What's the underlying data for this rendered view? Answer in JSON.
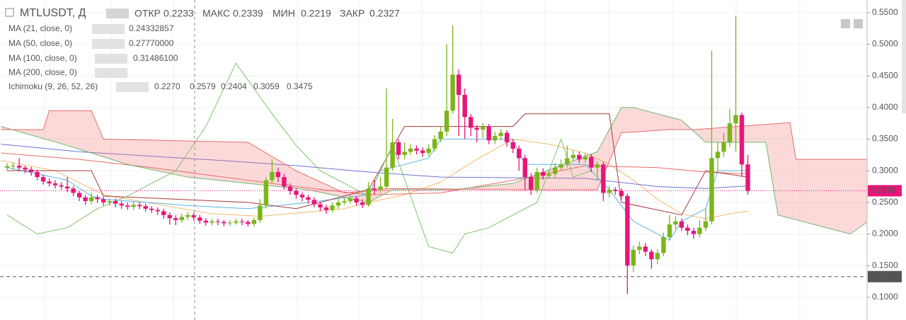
{
  "chart_data": {
    "type": "candlestick",
    "title": "MTLUSDT, Д",
    "ohlc": [
      {
        "name": "ОТКР",
        "value_label": "0.2233"
      },
      {
        "name": "МАКС",
        "value_label": "0.2339"
      },
      {
        "name": "МИН",
        "value_label": "0.2219"
      },
      {
        "name": "ЗАКР",
        "value_label": "0.2327"
      }
    ],
    "up_color": "#7cb518",
    "down_color": "#e8157a",
    "xlim": [
      -1.18,
      142.8
    ],
    "ylim": [
      0.064,
      0.57
    ],
    "yticks": [
      {
        "value": 0.1,
        "label": "0.1000"
      },
      {
        "value": 0.15,
        "label": "0.1500"
      },
      {
        "value": 0.2,
        "label": "0.2000"
      },
      {
        "value": 0.25,
        "label": "0.2500"
      },
      {
        "value": 0.3,
        "label": "0.3000"
      },
      {
        "value": 0.35,
        "label": "0.3500"
      },
      {
        "value": 0.4,
        "label": "0.4000"
      },
      {
        "value": 0.45,
        "label": "0.4500"
      },
      {
        "value": 0.5,
        "label": "0.5000"
      },
      {
        "value": 0.55,
        "label": "0.5500"
      }
    ],
    "grid": true,
    "candles": {
      "open": [
        0.305,
        0.307,
        0.308,
        0.305,
        0.302,
        0.298,
        0.29,
        0.283,
        0.28,
        0.277,
        0.275,
        0.272,
        0.265,
        0.258,
        0.252,
        0.258,
        0.255,
        0.25,
        0.252,
        0.248,
        0.245,
        0.243,
        0.246,
        0.244,
        0.24,
        0.238,
        0.236,
        0.23,
        0.225,
        0.222,
        0.227,
        0.23,
        0.226,
        0.221,
        0.218,
        0.22,
        0.219,
        0.217,
        0.218,
        0.22,
        0.219,
        0.216,
        0.222,
        0.245,
        0.285,
        0.298,
        0.29,
        0.275,
        0.268,
        0.262,
        0.258,
        0.254,
        0.247,
        0.242,
        0.238,
        0.245,
        0.25,
        0.252,
        0.256,
        0.25,
        0.246,
        0.272,
        0.27,
        0.275,
        0.305,
        0.345,
        0.325,
        0.33,
        0.335,
        0.332,
        0.328,
        0.335,
        0.35,
        0.362,
        0.395,
        0.452,
        0.42,
        0.385,
        0.368,
        0.365,
        0.37,
        0.348,
        0.355,
        0.36,
        0.345,
        0.335,
        0.32,
        0.29,
        0.27,
        0.298,
        0.292,
        0.295,
        0.305,
        0.31,
        0.32,
        0.325,
        0.318,
        0.322,
        0.305,
        0.31,
        0.265,
        0.27,
        0.268,
        0.26,
        0.15,
        0.175,
        0.18,
        0.172,
        0.16,
        0.17,
        0.195,
        0.215,
        0.22,
        0.21,
        0.205,
        0.2,
        0.21,
        0.22,
        0.32,
        0.33,
        0.345,
        0.375,
        0.388,
        0.31
      ],
      "high": [
        0.312,
        0.313,
        0.32,
        0.308,
        0.306,
        0.302,
        0.294,
        0.288,
        0.285,
        0.282,
        0.29,
        0.276,
        0.268,
        0.262,
        0.265,
        0.262,
        0.259,
        0.256,
        0.256,
        0.252,
        0.25,
        0.251,
        0.25,
        0.248,
        0.244,
        0.242,
        0.24,
        0.234,
        0.23,
        0.232,
        0.235,
        0.234,
        0.23,
        0.225,
        0.224,
        0.224,
        0.222,
        0.222,
        0.224,
        0.224,
        0.222,
        0.226,
        0.255,
        0.29,
        0.318,
        0.305,
        0.295,
        0.28,
        0.272,
        0.266,
        0.262,
        0.258,
        0.251,
        0.246,
        0.25,
        0.255,
        0.257,
        0.261,
        0.26,
        0.255,
        0.282,
        0.285,
        0.29,
        0.43,
        0.382,
        0.35,
        0.345,
        0.342,
        0.34,
        0.337,
        0.342,
        0.356,
        0.37,
        0.5,
        0.53,
        0.46,
        0.43,
        0.39,
        0.372,
        0.375,
        0.374,
        0.362,
        0.366,
        0.364,
        0.35,
        0.34,
        0.325,
        0.296,
        0.305,
        0.304,
        0.3,
        0.312,
        0.318,
        0.34,
        0.332,
        0.33,
        0.328,
        0.326,
        0.315,
        0.314,
        0.276,
        0.274,
        0.272,
        0.264,
        0.182,
        0.188,
        0.186,
        0.176,
        0.176,
        0.202,
        0.23,
        0.228,
        0.225,
        0.215,
        0.21,
        0.222,
        0.24,
        0.49,
        0.345,
        0.36,
        0.398,
        0.545,
        0.392,
        0.325
      ],
      "low": [
        0.3,
        0.302,
        0.3,
        0.296,
        0.292,
        0.285,
        0.278,
        0.275,
        0.272,
        0.27,
        0.266,
        0.26,
        0.252,
        0.246,
        0.247,
        0.249,
        0.245,
        0.245,
        0.242,
        0.24,
        0.238,
        0.238,
        0.239,
        0.235,
        0.233,
        0.23,
        0.224,
        0.215,
        0.214,
        0.218,
        0.222,
        0.221,
        0.216,
        0.213,
        0.214,
        0.214,
        0.212,
        0.213,
        0.215,
        0.214,
        0.212,
        0.212,
        0.218,
        0.24,
        0.28,
        0.282,
        0.27,
        0.262,
        0.256,
        0.252,
        0.248,
        0.242,
        0.236,
        0.232,
        0.234,
        0.24,
        0.246,
        0.248,
        0.245,
        0.241,
        0.243,
        0.262,
        0.265,
        0.27,
        0.3,
        0.318,
        0.318,
        0.325,
        0.326,
        0.322,
        0.323,
        0.33,
        0.345,
        0.355,
        0.39,
        0.355,
        0.35,
        0.355,
        0.345,
        0.352,
        0.342,
        0.342,
        0.348,
        0.338,
        0.328,
        0.3,
        0.27,
        0.262,
        0.265,
        0.286,
        0.287,
        0.29,
        0.3,
        0.305,
        0.315,
        0.312,
        0.313,
        0.298,
        0.285,
        0.252,
        0.258,
        0.262,
        0.254,
        0.105,
        0.14,
        0.168,
        0.165,
        0.145,
        0.152,
        0.165,
        0.19,
        0.208,
        0.205,
        0.198,
        0.192,
        0.195,
        0.205,
        0.215,
        0.3,
        0.322,
        0.338,
        0.33,
        0.29,
        0.262
      ],
      "close": [
        0.307,
        0.308,
        0.305,
        0.302,
        0.298,
        0.29,
        0.283,
        0.28,
        0.277,
        0.275,
        0.272,
        0.265,
        0.258,
        0.252,
        0.258,
        0.255,
        0.25,
        0.252,
        0.248,
        0.245,
        0.243,
        0.246,
        0.244,
        0.24,
        0.238,
        0.236,
        0.23,
        0.225,
        0.222,
        0.227,
        0.23,
        0.226,
        0.221,
        0.218,
        0.22,
        0.219,
        0.217,
        0.218,
        0.22,
        0.219,
        0.216,
        0.222,
        0.245,
        0.285,
        0.298,
        0.29,
        0.275,
        0.268,
        0.262,
        0.258,
        0.254,
        0.247,
        0.242,
        0.238,
        0.245,
        0.25,
        0.252,
        0.256,
        0.25,
        0.246,
        0.272,
        0.27,
        0.275,
        0.305,
        0.345,
        0.325,
        0.33,
        0.335,
        0.332,
        0.328,
        0.335,
        0.35,
        0.362,
        0.395,
        0.452,
        0.42,
        0.385,
        0.368,
        0.365,
        0.37,
        0.348,
        0.355,
        0.36,
        0.345,
        0.335,
        0.32,
        0.29,
        0.27,
        0.298,
        0.292,
        0.295,
        0.305,
        0.31,
        0.32,
        0.325,
        0.318,
        0.322,
        0.305,
        0.31,
        0.265,
        0.27,
        0.268,
        0.26,
        0.15,
        0.175,
        0.18,
        0.172,
        0.16,
        0.17,
        0.195,
        0.215,
        0.22,
        0.21,
        0.205,
        0.2,
        0.21,
        0.22,
        0.32,
        0.33,
        0.345,
        0.375,
        0.388,
        0.31,
        0.268
      ]
    },
    "indicators": [
      {
        "name": "MA (21, close, 0)",
        "readouts": [
          {
            "label": "0.24332857",
            "color": "#f5a623"
          }
        ],
        "lines": [
          {
            "color": "#f5b96a",
            "x": [
              -1,
              8,
              16,
              26,
              34,
              42,
              48,
              56,
              60,
              66,
              72,
              78,
              84,
              90,
              96,
              100,
              104,
              108,
              112,
              116,
              120,
              123
            ],
            "values": [
              0.316,
              0.3,
              0.262,
              0.245,
              0.232,
              0.228,
              0.233,
              0.24,
              0.25,
              0.262,
              0.282,
              0.318,
              0.35,
              0.342,
              0.328,
              0.31,
              0.285,
              0.255,
              0.232,
              0.224,
              0.232,
              0.236
            ]
          }
        ]
      },
      {
        "name": "MA (50, close, 0)",
        "readouts": [
          {
            "label": "0.27770000",
            "color": "#e53935"
          }
        ],
        "lines": [
          {
            "color": "#ea6a6a",
            "x": [
              -1,
              12,
              24,
              36,
              48,
              60,
              72,
              84,
              96,
              108,
              116,
              123
            ],
            "values": [
              0.328,
              0.318,
              0.305,
              0.29,
              0.275,
              0.262,
              0.265,
              0.285,
              0.308,
              0.305,
              0.298,
              0.295
            ]
          }
        ]
      },
      {
        "name": "MA (100, close, 0)",
        "readouts": [
          {
            "label": "0.31486100",
            "color": "#3f51b5"
          }
        ],
        "lines": [
          {
            "color": "#6b74d6",
            "x": [
              -1,
              12,
              24,
              36,
              48,
              60,
              72,
              84,
              96,
              108,
              116,
              123
            ],
            "values": [
              0.342,
              0.33,
              0.323,
              0.316,
              0.308,
              0.298,
              0.29,
              0.289,
              0.288,
              0.275,
              0.272,
              0.276
            ]
          }
        ]
      },
      {
        "name": "MA (200, close, 0)"
      },
      {
        "name": "Ichimoku (9, 26, 52, 26)",
        "readouts": [
          {
            "label": "0.2270",
            "color": "#2aa3d8"
          },
          {
            "label": "0.2579",
            "color": "#b03030"
          },
          {
            "label": "0.2404",
            "color": "#3a9a3a"
          },
          {
            "label": "0.3059",
            "color": "#3a9a3a"
          },
          {
            "label": "0.3475",
            "color": "#e53935"
          }
        ],
        "lines": [
          {
            "color": "#5ab4e6",
            "x": [
              0,
              10,
              14,
              16,
              30,
              40,
              50,
              60,
              62,
              70,
              72,
              84,
              86,
              96,
              100,
              104,
              110,
              112,
              116,
              118,
              123
            ],
            "values": [
              0.305,
              0.285,
              0.26,
              0.255,
              0.245,
              0.24,
              0.25,
              0.262,
              0.3,
              0.32,
              0.35,
              0.35,
              0.31,
              0.31,
              0.27,
              0.22,
              0.19,
              0.22,
              0.24,
              0.3,
              0.3
            ]
          },
          {
            "color": "#a83a3a",
            "x": [
              0,
              14,
              16,
              40,
              48,
              60,
              66,
              84,
              86,
              100,
              102,
              112,
              116,
              123
            ],
            "values": [
              0.3,
              0.3,
              0.26,
              0.25,
              0.24,
              0.27,
              0.37,
              0.37,
              0.39,
              0.39,
              0.25,
              0.23,
              0.3,
              0.29
            ]
          },
          {
            "color": "#7cc46a",
            "x": [
              0,
              5,
              10,
              15,
              20,
              28,
              33,
              38,
              44,
              48,
              52,
              56,
              60,
              64,
              70,
              74,
              76,
              80,
              84,
              88,
              92,
              94,
              97
            ],
            "values": [
              0.23,
              0.2,
              0.21,
              0.24,
              0.26,
              0.3,
              0.37,
              0.47,
              0.39,
              0.34,
              0.3,
              0.28,
              0.26,
              0.34,
              0.18,
              0.17,
              0.2,
              0.21,
              0.23,
              0.25,
              0.35,
              0.29,
              0.3
            ]
          }
        ],
        "cloud": {
          "fill": "rgba(240,120,120,0.28)",
          "span_a": {
            "color": "#6fb86f",
            "x": [
              -1,
              10,
              20,
              30,
              40,
              50,
              60,
              64,
              74,
              84,
              98,
              102,
              104,
              112,
              116,
              126,
              128,
              134,
              140,
              143
            ],
            "values": [
              0.37,
              0.34,
              0.31,
              0.29,
              0.28,
              0.27,
              0.25,
              0.27,
              0.27,
              0.28,
              0.33,
              0.4,
              0.4,
              0.38,
              0.345,
              0.345,
              0.23,
              0.215,
              0.2,
              0.22
            ]
          },
          "span_b": {
            "color": "#e86b6b",
            "x": [
              -1,
              6,
              7,
              14,
              16,
              40,
              48,
              56,
              64,
              86,
              98,
              102,
              110,
              114,
              130,
              131,
              143
            ],
            "values": [
              0.365,
              0.365,
              0.395,
              0.395,
              0.35,
              0.345,
              0.3,
              0.265,
              0.272,
              0.27,
              0.27,
              0.36,
              0.365,
              0.365,
              0.376,
              0.318,
              0.318
            ]
          }
        }
      }
    ],
    "price_markers": [
      {
        "value": 0.2684,
        "label": "0.2684",
        "color": "#e8157a"
      },
      {
        "value": 0.1326,
        "label": "0.1326",
        "color": "#555555"
      }
    ]
  }
}
